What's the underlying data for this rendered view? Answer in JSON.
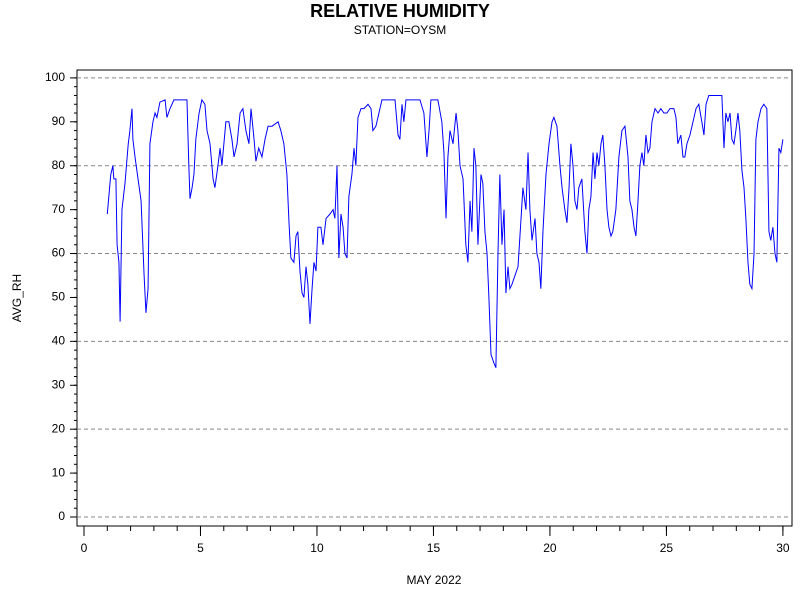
{
  "chart_data": {
    "type": "line",
    "title": "RELATIVE HUMIDITY",
    "subtitle": "STATION=OYSM",
    "x_label": "MAY 2022",
    "y_label": "AVG_RH",
    "color": "#0000ff",
    "xlim": [
      -0.3,
      30.39
    ],
    "ylim": [
      -2.05,
      101.8
    ],
    "xticks": [
      0,
      5,
      10,
      15,
      20,
      25,
      30
    ],
    "xminorticks": [
      0,
      1,
      2,
      3,
      4,
      5,
      6,
      7,
      8,
      9,
      10,
      11,
      12,
      13,
      14,
      15,
      16,
      17,
      18,
      19,
      20,
      21,
      22,
      23,
      24,
      25,
      26,
      27,
      28,
      29,
      30
    ],
    "yticks": [
      0,
      10,
      20,
      30,
      40,
      50,
      60,
      70,
      80,
      90,
      100
    ],
    "yminorticks": [
      0,
      2,
      4,
      6,
      8,
      10,
      12,
      14,
      16,
      18,
      20,
      22,
      24,
      26,
      28,
      30,
      32,
      34,
      36,
      38,
      40,
      42,
      44,
      46,
      48,
      50,
      52,
      54,
      56,
      58,
      60,
      62,
      64,
      66,
      68,
      70,
      72,
      74,
      76,
      78,
      80,
      82,
      84,
      86,
      88,
      90,
      92,
      94,
      96,
      98,
      100
    ],
    "ygrid": [
      0,
      20,
      40,
      60,
      80,
      100
    ],
    "x": [
      1.0,
      1.15,
      1.24,
      1.28,
      1.37,
      1.42,
      1.5,
      1.55,
      1.63,
      1.76,
      1.9,
      1.97,
      2.06,
      2.1,
      2.19,
      2.32,
      2.45,
      2.58,
      2.66,
      2.75,
      2.83,
      2.96,
      3.05,
      3.13,
      3.26,
      3.48,
      3.56,
      3.69,
      3.86,
      4.12,
      4.42,
      4.5,
      4.55,
      4.64,
      4.72,
      4.8,
      4.94,
      5.06,
      5.19,
      5.28,
      5.41,
      5.54,
      5.62,
      5.75,
      5.84,
      5.92,
      6.09,
      6.22,
      6.35,
      6.44,
      6.57,
      6.7,
      6.82,
      6.95,
      7.08,
      7.17,
      7.3,
      7.38,
      7.5,
      7.64,
      7.77,
      7.9,
      8.07,
      8.33,
      8.45,
      8.58,
      8.71,
      8.8,
      8.88,
      9.01,
      9.1,
      9.18,
      9.27,
      9.36,
      9.44,
      9.53,
      9.61,
      9.7,
      9.79,
      9.87,
      9.96,
      10.04,
      10.17,
      10.26,
      10.39,
      10.56,
      10.69,
      10.77,
      10.86,
      10.94,
      11.03,
      11.12,
      11.2,
      11.29,
      11.37,
      11.5,
      11.59,
      11.67,
      11.76,
      11.89,
      12.02,
      12.19,
      12.32,
      12.4,
      12.53,
      12.66,
      12.79,
      13.05,
      13.35,
      13.48,
      13.56,
      13.65,
      13.73,
      13.82,
      14.08,
      14.42,
      14.59,
      14.72,
      14.81,
      14.89,
      15.19,
      15.36,
      15.45,
      15.54,
      15.62,
      15.71,
      15.84,
      15.97,
      16.05,
      16.14,
      16.27,
      16.39,
      16.48,
      16.57,
      16.65,
      16.74,
      16.82,
      16.91,
      17.04,
      17.12,
      17.21,
      17.3,
      17.38,
      17.47,
      17.6,
      17.68,
      17.77,
      17.85,
      17.94,
      18.03,
      18.11,
      18.2,
      18.28,
      18.37,
      18.5,
      18.63,
      18.76,
      18.84,
      18.97,
      19.06,
      19.14,
      19.23,
      19.36,
      19.44,
      19.53,
      19.61,
      19.7,
      19.83,
      19.96,
      20.09,
      20.17,
      20.3,
      20.43,
      20.52,
      20.64,
      20.73,
      20.82,
      20.9,
      20.99,
      21.07,
      21.16,
      21.24,
      21.37,
      21.5,
      21.59,
      21.67,
      21.76,
      21.85,
      21.93,
      22.02,
      22.1,
      22.19,
      22.27,
      22.36,
      22.45,
      22.53,
      22.62,
      22.7,
      22.83,
      22.96,
      23.09,
      23.22,
      23.35,
      23.43,
      23.52,
      23.61,
      23.69,
      23.78,
      23.86,
      23.95,
      24.03,
      24.12,
      24.21,
      24.29,
      24.38,
      24.51,
      24.64,
      24.76,
      24.89,
      25.02,
      25.15,
      25.32,
      25.41,
      25.49,
      25.62,
      25.71,
      25.79,
      25.88,
      26.01,
      26.14,
      26.27,
      26.39,
      26.52,
      26.61,
      26.7,
      26.82,
      27.08,
      27.38,
      27.47,
      27.55,
      27.64,
      27.73,
      27.81,
      27.9,
      27.98,
      28.07,
      28.15,
      28.24,
      28.33,
      28.41,
      28.5,
      28.58,
      28.67,
      28.76,
      28.84,
      28.93,
      29.06,
      29.18,
      29.31,
      29.4,
      29.48,
      29.57,
      29.66,
      29.74,
      29.83,
      29.91,
      30.0
    ],
    "values": [
      69,
      78,
      80,
      77,
      77,
      62,
      58,
      44.5,
      70,
      76,
      85,
      88,
      93,
      86,
      82,
      77,
      72,
      55,
      46.5,
      52,
      85,
      90,
      92,
      91,
      94.5,
      95,
      91,
      93,
      95,
      95,
      95,
      80,
      72.5,
      75,
      78,
      86,
      92,
      95,
      94,
      88,
      85,
      77,
      75,
      80,
      84,
      80,
      90,
      90,
      86,
      82,
      85,
      92,
      93,
      88,
      85,
      93,
      86,
      81,
      84,
      82,
      86,
      89,
      89,
      90,
      88,
      85,
      78,
      67,
      59,
      58,
      64,
      65,
      56,
      51,
      50,
      57,
      53,
      44,
      52,
      58,
      56,
      66,
      66,
      62,
      68,
      69,
      70,
      68,
      80,
      59,
      69,
      66,
      60,
      59,
      73,
      78,
      84,
      80,
      91,
      93,
      93,
      94,
      93,
      88,
      89,
      92,
      95,
      95,
      95,
      87,
      86,
      94,
      90,
      95,
      95,
      95,
      92,
      82,
      88,
      95,
      95,
      90,
      83,
      68,
      82,
      88,
      85,
      92,
      88,
      80,
      77,
      62,
      58,
      72,
      65,
      84,
      80,
      62,
      78,
      76,
      65,
      60,
      50,
      37,
      35,
      34,
      60,
      78,
      62,
      70,
      51,
      57,
      52,
      53,
      55,
      57,
      68,
      75,
      70,
      83,
      70,
      63,
      68,
      60,
      58,
      52,
      65,
      78,
      85,
      90,
      91,
      89,
      80,
      75,
      70,
      67,
      75,
      85,
      80,
      72,
      70,
      75,
      77,
      65,
      60,
      70,
      73,
      83,
      77,
      83,
      80,
      85,
      87,
      80,
      70,
      66,
      64,
      65,
      70,
      82,
      88,
      89,
      82,
      72,
      70,
      66,
      64,
      72,
      80,
      83,
      80,
      87,
      83,
      84,
      90,
      93,
      92,
      93,
      92,
      92,
      93,
      93,
      91,
      85,
      87,
      82,
      82,
      85,
      87,
      90,
      93,
      94,
      90,
      87,
      94,
      96,
      96,
      96,
      84,
      92,
      90,
      92,
      86,
      85,
      88,
      92,
      88,
      79,
      75,
      68,
      58,
      53,
      52,
      60,
      86,
      90,
      93,
      94,
      93,
      65,
      63,
      66,
      60,
      58,
      84,
      83,
      86
    ]
  }
}
